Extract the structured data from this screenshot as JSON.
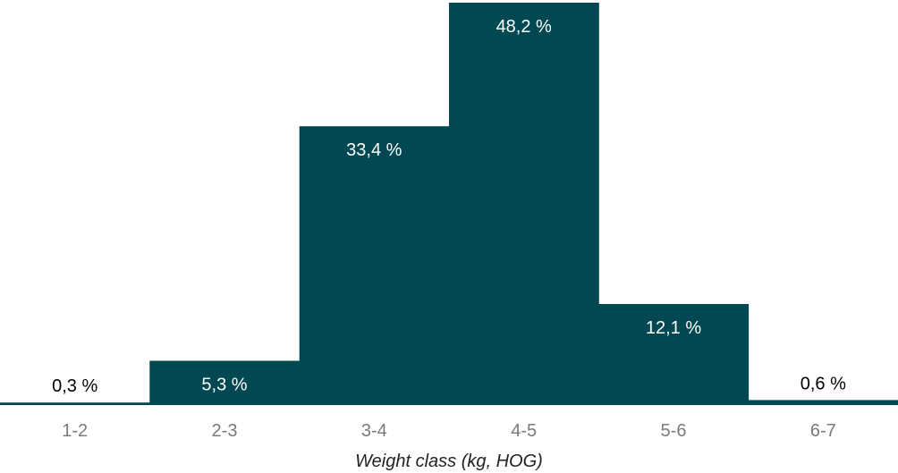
{
  "chart_data": {
    "type": "bar",
    "title": "",
    "xlabel": "Weight class (kg, HOG)",
    "ylabel": "",
    "categories": [
      "1-2",
      "2-3",
      "3-4",
      "4-5",
      "5-6",
      "6-7"
    ],
    "values": [
      0.3,
      5.3,
      33.4,
      48.2,
      12.1,
      0.6
    ],
    "value_labels": [
      "0,3 %",
      "5,3 %",
      "33,4 %",
      "48,2 %",
      "12,1 %",
      "0,6 %"
    ],
    "ylim": [
      0,
      48.2
    ],
    "grid": false,
    "legend": "none",
    "colors": {
      "bar": "#014852",
      "label_inside": "#ffffff",
      "label_outside": "#000000",
      "tick_label": "#7a7a7a",
      "axis_title": "#222222"
    }
  }
}
